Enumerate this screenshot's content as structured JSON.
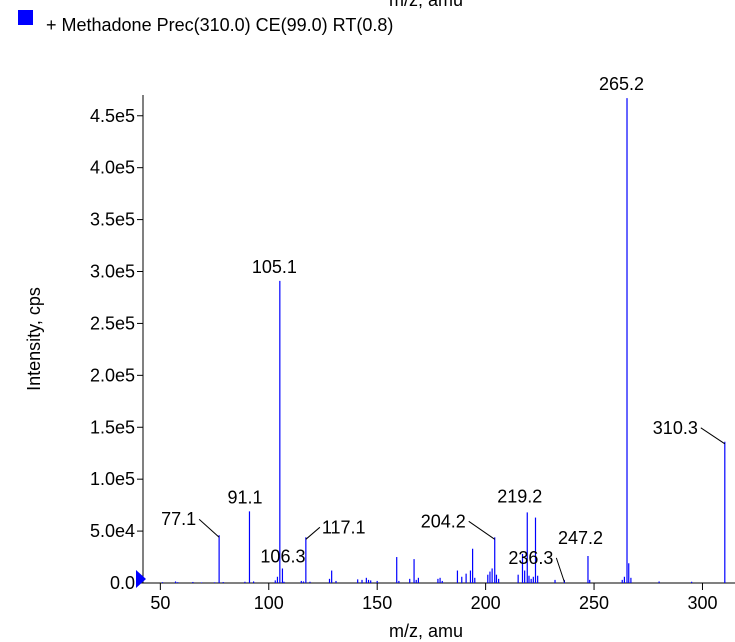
{
  "top_clipped_text": "m/z, amu",
  "legend": {
    "label": "+ Methadone Prec(310.0) CE(99.0) RT(0.8)",
    "marker_color": "#0000ff"
  },
  "colors": {
    "series": "#0000ff",
    "axis": "#000000",
    "origin_marker": "#0000ff"
  },
  "chart_data": {
    "type": "bar",
    "title": "",
    "xlabel": "m/z, amu",
    "ylabel": "Intensity, cps",
    "xlim": [
      42,
      315
    ],
    "ylim": [
      0,
      470000
    ],
    "x_ticks": [
      50,
      100,
      150,
      200,
      250,
      300
    ],
    "x_tick_labels": [
      "50",
      "100",
      "150",
      "200",
      "250",
      "300"
    ],
    "y_ticks": [
      0,
      50000,
      100000,
      150000,
      200000,
      250000,
      300000,
      350000,
      400000,
      450000
    ],
    "y_tick_labels": [
      "0.0",
      "5.0e4",
      "1.0e5",
      "1.5e5",
      "2.0e5",
      "2.5e5",
      "3.0e5",
      "3.5e5",
      "4.0e5",
      "4.5e5"
    ],
    "grid": false,
    "legend_position": "top-left",
    "series": [
      {
        "name": "+ Methadone Prec(310.0) CE(99.0) RT(0.8)",
        "peaks": [
          {
            "x": 51.0,
            "y": 800
          },
          {
            "x": 57.0,
            "y": 1500
          },
          {
            "x": 58.0,
            "y": 800
          },
          {
            "x": 65.0,
            "y": 1000
          },
          {
            "x": 69.0,
            "y": 600
          },
          {
            "x": 75.0,
            "y": 700
          },
          {
            "x": 77.1,
            "y": 46000
          },
          {
            "x": 79.0,
            "y": 900
          },
          {
            "x": 89.0,
            "y": 1200
          },
          {
            "x": 91.1,
            "y": 69000
          },
          {
            "x": 93.0,
            "y": 1500
          },
          {
            "x": 103.0,
            "y": 2500
          },
          {
            "x": 104.0,
            "y": 6000
          },
          {
            "x": 105.1,
            "y": 291000
          },
          {
            "x": 106.3,
            "y": 14000
          },
          {
            "x": 107.0,
            "y": 1200
          },
          {
            "x": 115.0,
            "y": 2000
          },
          {
            "x": 116.0,
            "y": 1500
          },
          {
            "x": 117.1,
            "y": 44000
          },
          {
            "x": 119.0,
            "y": 1200
          },
          {
            "x": 128.0,
            "y": 4000
          },
          {
            "x": 129.0,
            "y": 12000
          },
          {
            "x": 131.0,
            "y": 2000
          },
          {
            "x": 141.0,
            "y": 3500
          },
          {
            "x": 143.0,
            "y": 3000
          },
          {
            "x": 145.0,
            "y": 5000
          },
          {
            "x": 146.0,
            "y": 3000
          },
          {
            "x": 147.0,
            "y": 2500
          },
          {
            "x": 150.0,
            "y": 2000
          },
          {
            "x": 159.0,
            "y": 25000
          },
          {
            "x": 160.0,
            "y": 2000
          },
          {
            "x": 165.0,
            "y": 4000
          },
          {
            "x": 167.0,
            "y": 23000
          },
          {
            "x": 168.0,
            "y": 3000
          },
          {
            "x": 169.0,
            "y": 5000
          },
          {
            "x": 178.0,
            "y": 4000
          },
          {
            "x": 179.0,
            "y": 5000
          },
          {
            "x": 180.0,
            "y": 2000
          },
          {
            "x": 187.0,
            "y": 12000
          },
          {
            "x": 189.0,
            "y": 6000
          },
          {
            "x": 191.0,
            "y": 9000
          },
          {
            "x": 193.0,
            "y": 12000
          },
          {
            "x": 194.0,
            "y": 33000
          },
          {
            "x": 195.0,
            "y": 5000
          },
          {
            "x": 201.0,
            "y": 8000
          },
          {
            "x": 202.0,
            "y": 11000
          },
          {
            "x": 203.0,
            "y": 14000
          },
          {
            "x": 204.2,
            "y": 44000
          },
          {
            "x": 205.0,
            "y": 8000
          },
          {
            "x": 206.0,
            "y": 4000
          },
          {
            "x": 215.0,
            "y": 8000
          },
          {
            "x": 217.0,
            "y": 28000
          },
          {
            "x": 218.0,
            "y": 12000
          },
          {
            "x": 219.2,
            "y": 68000
          },
          {
            "x": 220.0,
            "y": 7000
          },
          {
            "x": 221.0,
            "y": 4000
          },
          {
            "x": 222.0,
            "y": 6000
          },
          {
            "x": 223.0,
            "y": 63000
          },
          {
            "x": 224.0,
            "y": 7000
          },
          {
            "x": 232.0,
            "y": 3000
          },
          {
            "x": 236.3,
            "y": 3000
          },
          {
            "x": 247.2,
            "y": 26000
          },
          {
            "x": 248.0,
            "y": 3000
          },
          {
            "x": 263.0,
            "y": 3000
          },
          {
            "x": 264.0,
            "y": 6000
          },
          {
            "x": 265.2,
            "y": 467000
          },
          {
            "x": 266.0,
            "y": 19000
          },
          {
            "x": 267.0,
            "y": 5000
          },
          {
            "x": 280.0,
            "y": 1500
          },
          {
            "x": 295.0,
            "y": 1200
          },
          {
            "x": 310.3,
            "y": 136000
          }
        ]
      }
    ],
    "annotations": [
      {
        "text": "77.1",
        "x": 77.1,
        "y": 46000
      },
      {
        "text": "91.1",
        "x": 91.1,
        "y": 69000
      },
      {
        "text": "105.1",
        "x": 105.1,
        "y": 291000
      },
      {
        "text": "106.3",
        "x": 106.3,
        "y": 14000
      },
      {
        "text": "117.1",
        "x": 117.1,
        "y": 44000
      },
      {
        "text": "204.2",
        "x": 204.2,
        "y": 44000
      },
      {
        "text": "219.2",
        "x": 219.2,
        "y": 68000
      },
      {
        "text": "236.3",
        "x": 236.3,
        "y": 3000
      },
      {
        "text": "247.2",
        "x": 247.2,
        "y": 26000
      },
      {
        "text": "265.2",
        "x": 265.2,
        "y": 467000
      },
      {
        "text": "310.3",
        "x": 310.3,
        "y": 136000
      }
    ]
  }
}
